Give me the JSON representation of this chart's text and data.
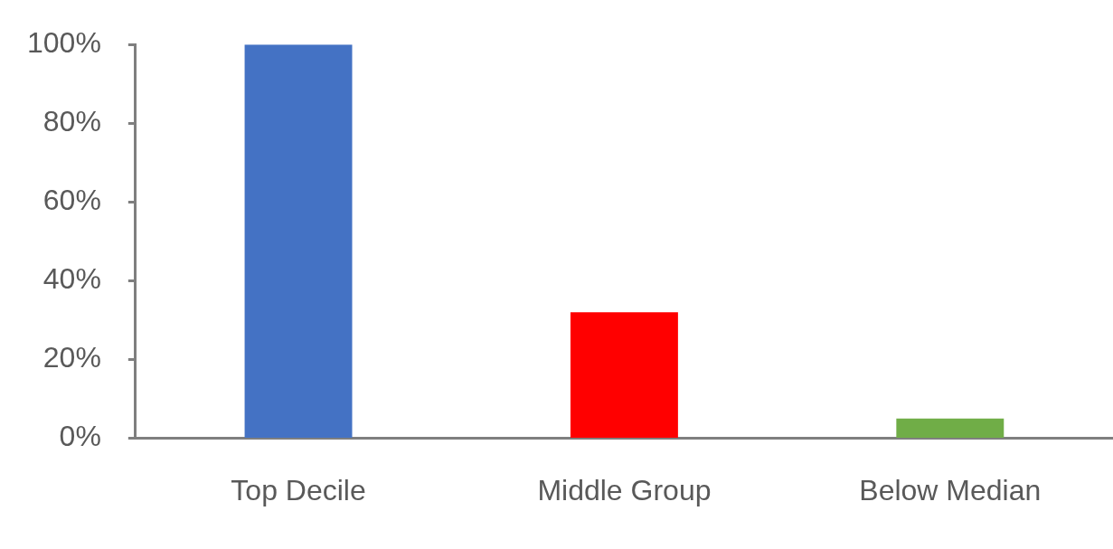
{
  "chart_data": {
    "type": "bar",
    "categories": [
      "Top Decile",
      "Middle Group",
      "Below Median"
    ],
    "values": [
      100,
      32,
      5
    ],
    "colors": [
      "#4472c4",
      "#ff0000",
      "#70ad47"
    ],
    "ylim": [
      0,
      100
    ],
    "yticks": [
      {
        "value": 0,
        "label": "0%"
      },
      {
        "value": 20,
        "label": "20%"
      },
      {
        "value": 40,
        "label": "40%"
      },
      {
        "value": 60,
        "label": "60%"
      },
      {
        "value": 80,
        "label": "80%"
      },
      {
        "value": 100,
        "label": "100%"
      }
    ],
    "grid": false,
    "legend": false
  }
}
